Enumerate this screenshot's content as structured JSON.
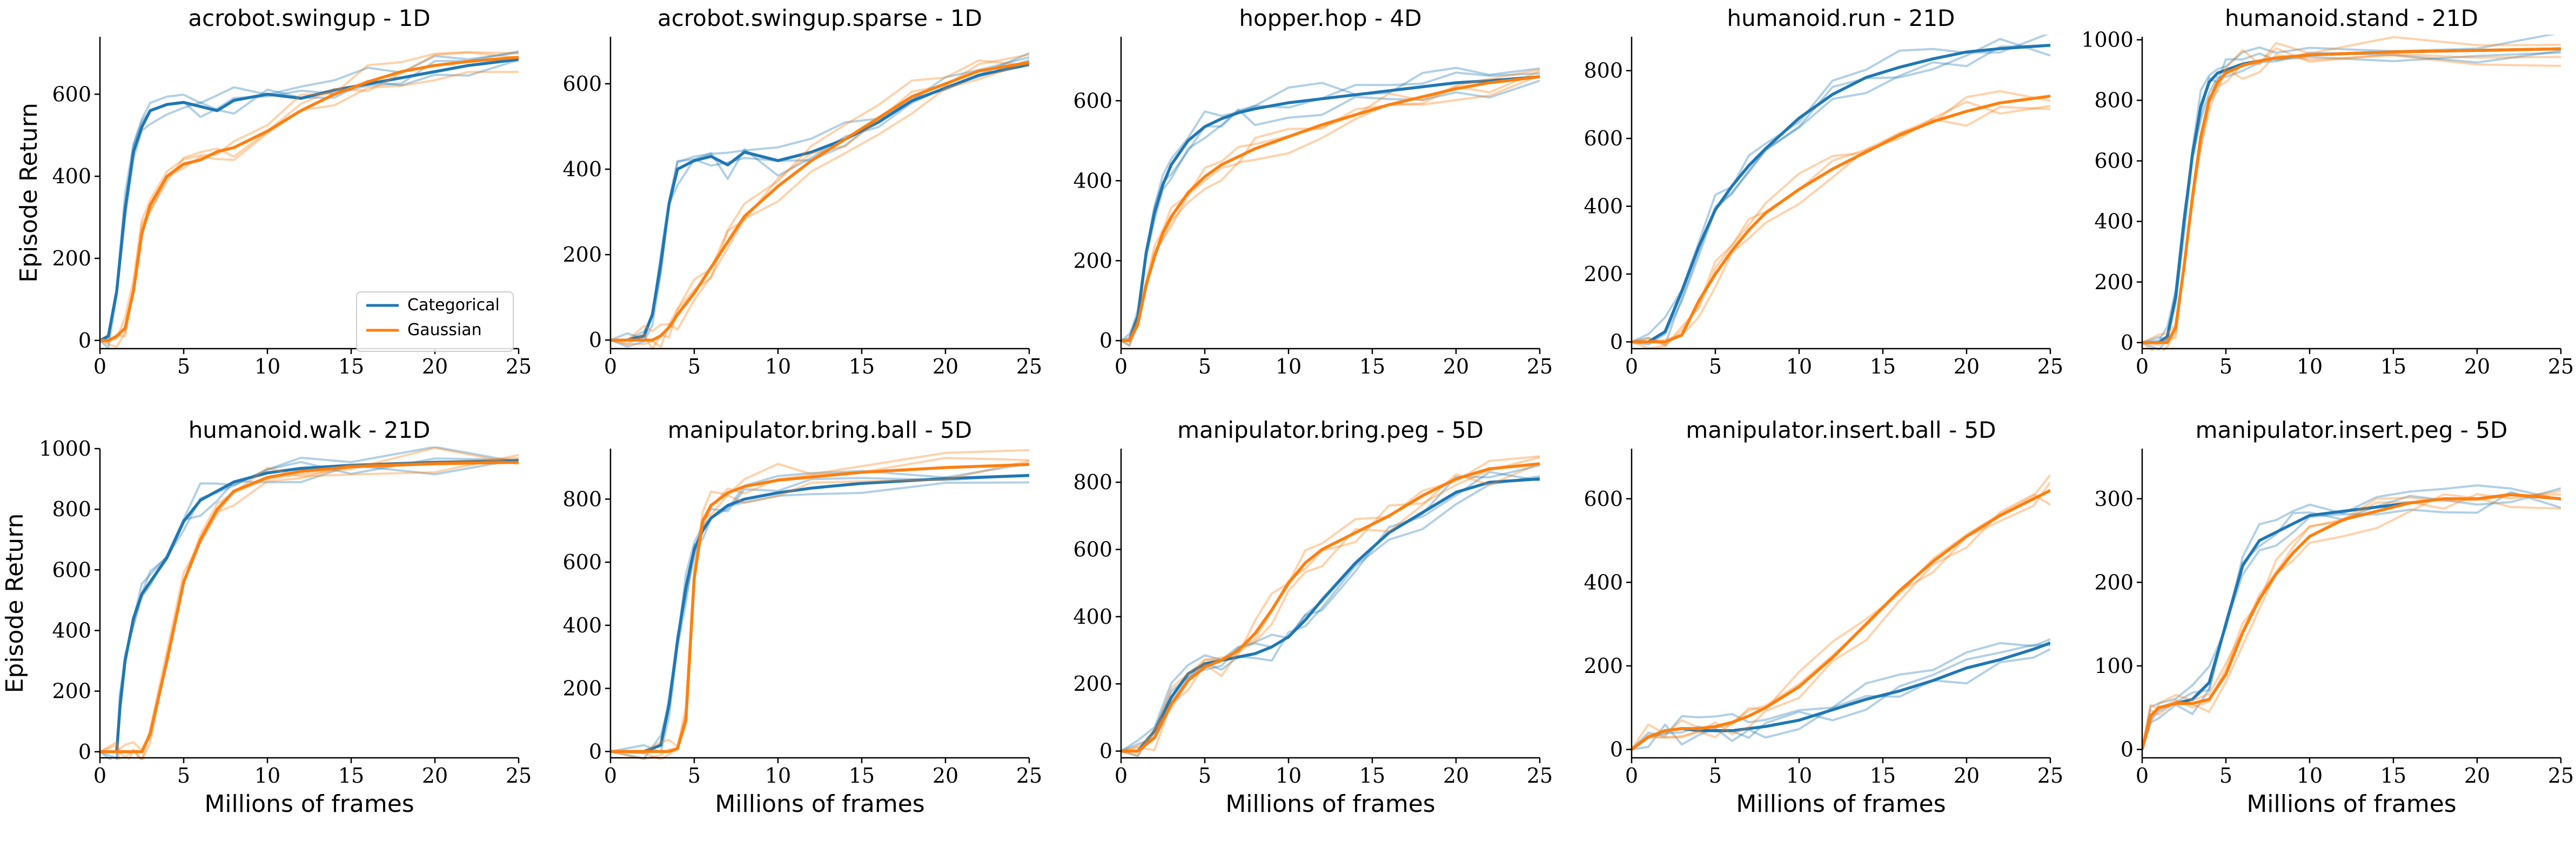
{
  "colors": {
    "categorical": "#1f77b4",
    "gaussian": "#ff7f0e"
  },
  "legend": {
    "location": "lower-right",
    "items": [
      "Categorical",
      "Gaussian"
    ]
  },
  "xlabel": "Millions of frames",
  "ylabel": "Episode Return",
  "chart_data": [
    {
      "type": "line",
      "title": "acrobot.swingup - 1D",
      "xlim": [
        0,
        25
      ],
      "ylim": [
        -20,
        740
      ],
      "xticks": [
        0,
        5,
        10,
        15,
        20,
        25
      ],
      "yticks": [
        0,
        200,
        400,
        600
      ],
      "x": [
        0,
        0.5,
        1,
        1.5,
        2,
        2.5,
        3,
        4,
        5,
        6,
        7,
        8,
        10,
        12,
        14,
        16,
        18,
        20,
        22,
        25
      ],
      "series": [
        {
          "name": "Categorical",
          "values": [
            0,
            10,
            120,
            320,
            460,
            520,
            560,
            575,
            580,
            570,
            560,
            585,
            600,
            590,
            610,
            625,
            640,
            655,
            670,
            685
          ]
        },
        {
          "name": "Gaussian",
          "values": [
            0,
            0,
            10,
            30,
            120,
            260,
            330,
            400,
            430,
            440,
            460,
            470,
            510,
            560,
            600,
            630,
            655,
            670,
            680,
            690
          ]
        }
      ]
    },
    {
      "type": "line",
      "title": "acrobot.swingup.sparse - 1D",
      "xlim": [
        0,
        25
      ],
      "ylim": [
        -20,
        710
      ],
      "xticks": [
        0,
        5,
        10,
        15,
        20,
        25
      ],
      "yticks": [
        0,
        200,
        400,
        600
      ],
      "x": [
        0,
        1,
        2,
        2.5,
        3,
        3.5,
        4,
        5,
        6,
        7,
        8,
        10,
        12,
        14,
        16,
        18,
        20,
        22,
        25
      ],
      "series": [
        {
          "name": "Categorical",
          "values": [
            0,
            0,
            10,
            60,
            180,
            320,
            400,
            420,
            430,
            410,
            440,
            420,
            440,
            470,
            510,
            560,
            590,
            620,
            645
          ]
        },
        {
          "name": "Gaussian",
          "values": [
            0,
            0,
            0,
            0,
            10,
            30,
            60,
            110,
            170,
            230,
            290,
            360,
            420,
            470,
            520,
            570,
            600,
            630,
            650
          ]
        }
      ]
    },
    {
      "type": "line",
      "title": "hopper.hop - 4D",
      "xlim": [
        0,
        25
      ],
      "ylim": [
        -20,
        760
      ],
      "xticks": [
        0,
        5,
        10,
        15,
        20,
        25
      ],
      "yticks": [
        0,
        200,
        400,
        600
      ],
      "x": [
        0,
        0.5,
        1,
        1.5,
        2,
        2.5,
        3,
        4,
        5,
        6,
        7,
        8,
        10,
        12,
        14,
        16,
        18,
        20,
        22,
        25
      ],
      "series": [
        {
          "name": "Categorical",
          "values": [
            0,
            0,
            60,
            220,
            320,
            390,
            440,
            500,
            535,
            555,
            570,
            580,
            595,
            605,
            615,
            625,
            635,
            645,
            650,
            660
          ]
        },
        {
          "name": "Gaussian",
          "values": [
            0,
            0,
            40,
            140,
            210,
            270,
            310,
            370,
            410,
            440,
            460,
            480,
            510,
            540,
            565,
            590,
            610,
            630,
            645,
            660
          ]
        }
      ]
    },
    {
      "type": "line",
      "title": "humanoid.run - 21D",
      "xlim": [
        0,
        25
      ],
      "ylim": [
        -20,
        900
      ],
      "xticks": [
        0,
        5,
        10,
        15,
        20,
        25
      ],
      "yticks": [
        0,
        200,
        400,
        600,
        800
      ],
      "x": [
        0,
        1,
        2,
        3,
        4,
        5,
        6,
        7,
        8,
        10,
        12,
        14,
        16,
        18,
        20,
        22,
        25
      ],
      "series": [
        {
          "name": "Categorical",
          "values": [
            0,
            0,
            30,
            150,
            280,
            390,
            460,
            520,
            570,
            660,
            730,
            780,
            810,
            835,
            855,
            865,
            875
          ]
        },
        {
          "name": "Gaussian",
          "values": [
            0,
            0,
            0,
            20,
            120,
            200,
            270,
            330,
            380,
            450,
            510,
            560,
            610,
            650,
            680,
            705,
            725
          ]
        }
      ]
    },
    {
      "type": "line",
      "title": "humanoid.stand - 21D",
      "xlim": [
        0,
        25
      ],
      "ylim": [
        -20,
        1010
      ],
      "xticks": [
        0,
        5,
        10,
        15,
        20,
        25
      ],
      "yticks": [
        0,
        200,
        400,
        600,
        800,
        1000
      ],
      "x": [
        0,
        1,
        1.5,
        2,
        2.5,
        3,
        3.5,
        4,
        4.5,
        5,
        6,
        7,
        8,
        10,
        15,
        20,
        25
      ],
      "series": [
        {
          "name": "Categorical",
          "values": [
            0,
            0,
            20,
            150,
            400,
            620,
            780,
            860,
            890,
            900,
            920,
            930,
            940,
            950,
            960,
            965,
            970
          ]
        },
        {
          "name": "Gaussian",
          "values": [
            0,
            0,
            0,
            50,
            250,
            480,
            680,
            800,
            860,
            890,
            915,
            930,
            940,
            950,
            960,
            965,
            970
          ]
        }
      ]
    },
    {
      "type": "line",
      "title": "humanoid.walk - 21D",
      "xlim": [
        0,
        25
      ],
      "ylim": [
        -20,
        1000
      ],
      "xticks": [
        0,
        5,
        10,
        15,
        20,
        25
      ],
      "yticks": [
        0,
        200,
        400,
        600,
        800,
        1000
      ],
      "x": [
        0,
        1,
        1.2,
        1.5,
        2,
        2.5,
        3,
        4,
        5,
        6,
        7,
        8,
        10,
        12,
        15,
        20,
        25
      ],
      "series": [
        {
          "name": "Categorical",
          "values": [
            0,
            0,
            150,
            300,
            440,
            520,
            560,
            640,
            760,
            830,
            860,
            890,
            920,
            935,
            945,
            955,
            960
          ]
        },
        {
          "name": "Gaussian",
          "values": [
            0,
            0,
            0,
            0,
            0,
            0,
            60,
            300,
            560,
            700,
            800,
            860,
            905,
            925,
            940,
            950,
            955
          ]
        }
      ]
    },
    {
      "type": "line",
      "title": "manipulator.bring.ball - 5D",
      "xlim": [
        0,
        25
      ],
      "ylim": [
        -20,
        960
      ],
      "xticks": [
        0,
        5,
        10,
        15,
        20,
        25
      ],
      "yticks": [
        0,
        200,
        400,
        600,
        800
      ],
      "x": [
        0,
        2,
        3,
        3.5,
        4,
        4.5,
        5,
        5.5,
        6,
        7,
        8,
        10,
        12,
        15,
        20,
        25
      ],
      "series": [
        {
          "name": "Categorical",
          "values": [
            0,
            0,
            20,
            150,
            350,
            520,
            640,
            700,
            740,
            780,
            800,
            820,
            835,
            850,
            865,
            875
          ]
        },
        {
          "name": "Gaussian",
          "values": [
            0,
            0,
            0,
            0,
            10,
            100,
            550,
            730,
            780,
            820,
            840,
            860,
            870,
            885,
            900,
            910
          ]
        }
      ]
    },
    {
      "type": "line",
      "title": "manipulator.bring.peg - 5D",
      "xlim": [
        0,
        25
      ],
      "ylim": [
        -20,
        900
      ],
      "xticks": [
        0,
        5,
        10,
        15,
        20,
        25
      ],
      "yticks": [
        0,
        200,
        400,
        600,
        800
      ],
      "x": [
        0,
        1,
        2,
        3,
        4,
        5,
        6,
        7,
        8,
        9,
        10,
        11,
        12,
        14,
        16,
        18,
        20,
        22,
        25
      ],
      "series": [
        {
          "name": "Categorical",
          "values": [
            0,
            0,
            60,
            160,
            230,
            260,
            270,
            280,
            290,
            310,
            340,
            390,
            450,
            560,
            650,
            710,
            770,
            800,
            810
          ]
        },
        {
          "name": "Gaussian",
          "values": [
            0,
            0,
            40,
            140,
            210,
            250,
            270,
            300,
            350,
            420,
            500,
            560,
            600,
            650,
            700,
            760,
            810,
            840,
            855
          ]
        }
      ]
    },
    {
      "type": "line",
      "title": "manipulator.insert.ball - 5D",
      "xlim": [
        0,
        25
      ],
      "ylim": [
        -20,
        720
      ],
      "xticks": [
        0,
        5,
        10,
        15,
        20,
        25
      ],
      "yticks": [
        0,
        200,
        400,
        600
      ],
      "x": [
        0,
        1,
        2,
        3,
        4,
        5,
        6,
        7,
        8,
        10,
        12,
        14,
        16,
        18,
        20,
        22,
        24,
        25
      ],
      "series": [
        {
          "name": "Categorical",
          "values": [
            0,
            30,
            45,
            50,
            45,
            45,
            45,
            50,
            55,
            70,
            95,
            120,
            140,
            165,
            195,
            215,
            240,
            255
          ]
        },
        {
          "name": "Gaussian",
          "values": [
            0,
            30,
            45,
            50,
            50,
            55,
            65,
            80,
            100,
            150,
            220,
            300,
            380,
            450,
            510,
            560,
            600,
            620
          ]
        }
      ]
    },
    {
      "type": "line",
      "title": "manipulator.insert.peg - 5D",
      "xlim": [
        0,
        25
      ],
      "ylim": [
        -10,
        360
      ],
      "xticks": [
        0,
        5,
        10,
        15,
        20,
        25
      ],
      "yticks": [
        0,
        100,
        200,
        300
      ],
      "x": [
        0,
        0.5,
        1,
        2,
        3,
        4,
        5,
        6,
        7,
        8,
        9,
        10,
        12,
        14,
        16,
        18,
        20,
        22,
        25
      ],
      "series": [
        {
          "name": "Categorical",
          "values": [
            0,
            40,
            50,
            55,
            60,
            80,
            150,
            220,
            250,
            260,
            270,
            280,
            285,
            290,
            295,
            300,
            300,
            305,
            300
          ]
        },
        {
          "name": "Gaussian",
          "values": [
            0,
            40,
            50,
            55,
            55,
            60,
            90,
            140,
            180,
            210,
            235,
            255,
            275,
            285,
            295,
            300,
            300,
            305,
            300
          ]
        }
      ]
    }
  ]
}
